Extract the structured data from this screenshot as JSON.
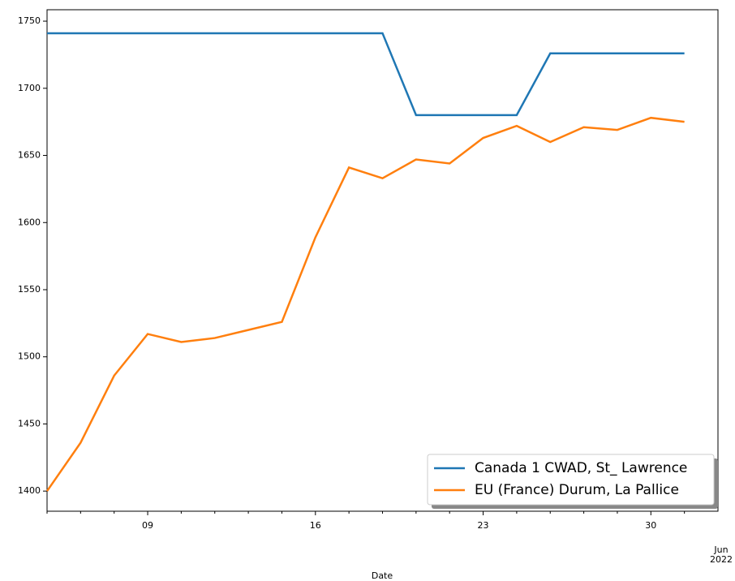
{
  "chart_data": {
    "type": "line",
    "xlabel": "Date",
    "categories": [
      null,
      null,
      null,
      "09",
      null,
      null,
      null,
      null,
      "16",
      null,
      null,
      null,
      null,
      "23",
      null,
      null,
      null,
      null,
      "30",
      null
    ],
    "x_extra_label": [
      "Jun",
      "2022"
    ],
    "series": [
      {
        "name": "Canada 1 CWAD, St_ Lawrence",
        "color": "#1f77b4",
        "values": [
          1741,
          1741,
          1741,
          1741,
          1741,
          1741,
          1741,
          1741,
          1741,
          1741,
          1741,
          1680,
          1680,
          1680,
          1680,
          1726,
          1726,
          1726,
          1726,
          1726
        ]
      },
      {
        "name": "EU (France) Durum, La Pallice",
        "color": "#ff7f0e",
        "values": [
          1400,
          1436,
          1486,
          1517,
          1511,
          1514,
          1520,
          1526,
          1589,
          1641,
          1633,
          1647,
          1644,
          1663,
          1672,
          1660,
          1671,
          1669,
          1678,
          1675
        ]
      }
    ],
    "ylim": [
      1385,
      1758.5
    ],
    "yticks": [
      1400,
      1450,
      1500,
      1550,
      1600,
      1650,
      1700,
      1750
    ],
    "legend": "lower right"
  }
}
